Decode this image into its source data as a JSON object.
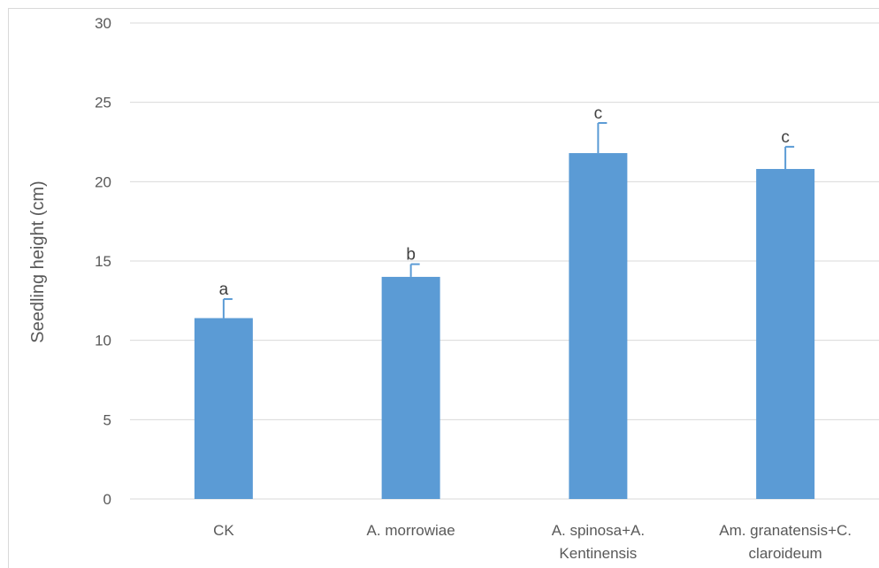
{
  "chart_data": {
    "type": "bar",
    "title": "",
    "xlabel": "",
    "ylabel": "Seedling height (cm)",
    "ylim": [
      0,
      30
    ],
    "yticks": [
      0,
      5,
      10,
      15,
      20,
      25,
      30
    ],
    "grid": true,
    "legend": "none",
    "categories": [
      [
        "CK"
      ],
      [
        "A. morrowiae"
      ],
      [
        "A. spinosa+A.",
        "Kentinensis"
      ],
      [
        "Am. granatensis+C.",
        "claroideum"
      ]
    ],
    "values": [
      11.4,
      14.0,
      21.8,
      20.8
    ],
    "errors": [
      1.2,
      0.8,
      1.9,
      1.4
    ],
    "significance": [
      "a",
      "b",
      "c",
      "c"
    ],
    "bar_color": "#5b9bd5",
    "grid_color": "#d9d9d9"
  }
}
